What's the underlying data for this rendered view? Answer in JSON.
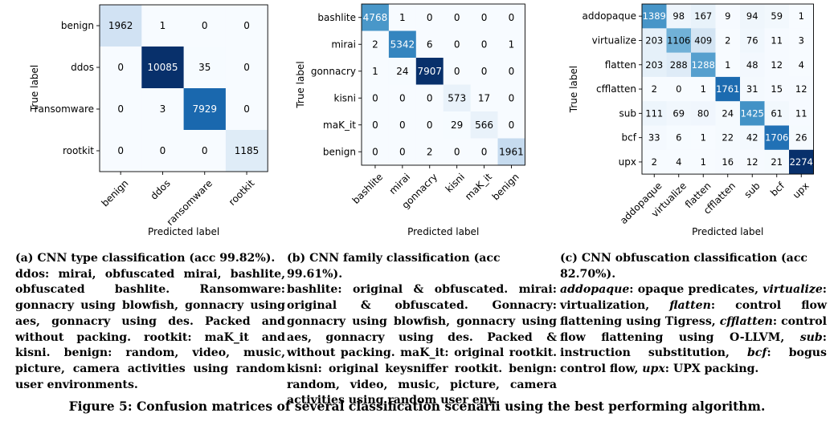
{
  "chart_data": [
    {
      "type": "heatmap",
      "xlabel": "Predicted label",
      "ylabel": "True label",
      "labels": [
        "benign",
        "ddos",
        "ransomware",
        "rootkit"
      ],
      "matrix": [
        [
          1962,
          1,
          0,
          0
        ],
        [
          0,
          10085,
          35,
          0
        ],
        [
          0,
          3,
          7929,
          0
        ],
        [
          0,
          0,
          0,
          1185
        ]
      ],
      "colormap": "Blues",
      "panel_caption": {
        "title": "(a) CNN type classification (acc 99.82%).",
        "body_html": "ddos: mirai, obfuscated mirai, bashlite, obfus­cated bashlite. Ransomware: gonnacry using blowfish, gonnacry using aes, gonnacry us­ing des. Packed and without packing. rootkit: maK_it and kisni. benign: random, video, mu­sic, picture, camera activities using random user environments."
      }
    },
    {
      "type": "heatmap",
      "xlabel": "Predicted label",
      "ylabel": "True label",
      "labels": [
        "bashlite",
        "mirai",
        "gonnacry",
        "kisni",
        "maK_it",
        "benign"
      ],
      "matrix": [
        [
          4768,
          1,
          0,
          0,
          0,
          0
        ],
        [
          2,
          5342,
          6,
          0,
          0,
          1
        ],
        [
          1,
          24,
          7907,
          0,
          0,
          0
        ],
        [
          0,
          0,
          0,
          573,
          17,
          0
        ],
        [
          0,
          0,
          0,
          29,
          566,
          0
        ],
        [
          0,
          0,
          2,
          0,
          0,
          1961
        ]
      ],
      "colormap": "Blues",
      "panel_caption": {
        "title": "(b) CNN family classification (acc 99.61%).",
        "body_html": "bashlite: original &amp; obfuscated. mirai: original &amp; obfuscated. Gonnacry: gonnacry using blow­fish, gonnacry using aes, gonnacry using des. Packed &amp; without packing. maK_it: original rootkit. kisni: original keysniffer rootkit. be­nign: random, video, music, picture, camera activities using random user env."
      }
    },
    {
      "type": "heatmap",
      "xlabel": "Predicted label",
      "ylabel": "True label",
      "labels": [
        "addopaque",
        "virtualize",
        "flatten",
        "cfflatten",
        "sub",
        "bcf",
        "upx"
      ],
      "matrix": [
        [
          1389,
          98,
          167,
          9,
          94,
          59,
          1
        ],
        [
          203,
          1106,
          409,
          2,
          76,
          11,
          3
        ],
        [
          203,
          288,
          1288,
          1,
          48,
          12,
          4
        ],
        [
          2,
          0,
          1,
          1761,
          31,
          15,
          12
        ],
        [
          111,
          69,
          80,
          24,
          1425,
          61,
          11
        ],
        [
          33,
          6,
          1,
          22,
          42,
          1706,
          26
        ],
        [
          2,
          4,
          1,
          16,
          12,
          21,
          2274
        ]
      ],
      "colormap": "Blues",
      "panel_caption": {
        "title": "(c) CNN obfuscation classification (acc 82.70%).",
        "body_html": "<i>addopaque</i>: opaque predicates, <i>virtualize</i>: vir­tualization, <i>flatten</i>: control flow flattening us­ing Tigress, <i>cfflatten</i>: control flow flattening using O-LLVM, <i>sub</i>: instruction substitution, <i>bcf</i>: bogus control flow, <i>upx</i>: UPX packing."
      }
    }
  ],
  "figure_caption": "Figure 5: Confusion matrices of several classification scenarii using the best performing algorithm."
}
